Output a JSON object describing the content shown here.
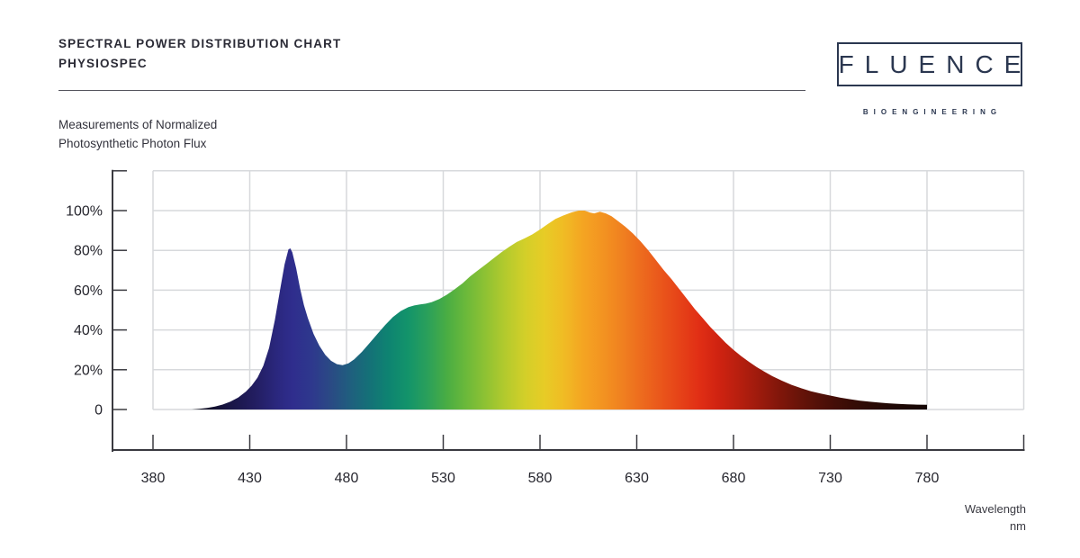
{
  "logo": {
    "name": "FLUENCE",
    "tagline": "BIOENGINEERING"
  },
  "caption": {
    "line1": "Measurements of Normalized",
    "line2": "Photosynthetic Photon Flux"
  },
  "axis_label": {
    "line1": "Wavelength",
    "line2": "nm"
  },
  "colors": {
    "background": "#ffffff",
    "grid": "#d7d9dc",
    "axis": "#3a3a40",
    "text": "#26262e",
    "logo_navy": "#2b3750"
  },
  "chart_data": {
    "type": "area",
    "title": "SPECTRAL POWER DISTRIBUTION CHART",
    "subtitle": "PHYSIOSPEC",
    "ylabel": "Measurements of Normalized Photosynthetic Photon Flux",
    "xlabel": "Wavelength nm",
    "grid": true,
    "legend": "none",
    "xlim_nm": [
      380,
      830
    ],
    "ylim_pct": [
      0,
      120
    ],
    "x_ticks": [
      380,
      430,
      480,
      530,
      580,
      630,
      680,
      730,
      780
    ],
    "x_grid_nm": [
      380,
      430,
      480,
      530,
      580,
      630,
      680,
      730,
      780,
      830
    ],
    "y_ticks_pct": [
      100,
      80,
      60,
      40,
      20,
      0
    ],
    "y_tick_labels": [
      "100%",
      "80%",
      "60%",
      "40%",
      "20%",
      "0"
    ],
    "y_grid_pct": [
      0,
      20,
      40,
      60,
      80,
      100,
      120
    ],
    "series_name": "Normalized Photosynthetic Photon Flux (%)",
    "points_nm_pct": [
      [
        400,
        0
      ],
      [
        404,
        0.3
      ],
      [
        408,
        0.8
      ],
      [
        412,
        1.5
      ],
      [
        416,
        2.5
      ],
      [
        420,
        4
      ],
      [
        424,
        6
      ],
      [
        428,
        9
      ],
      [
        431,
        12
      ],
      [
        434,
        16
      ],
      [
        437,
        22
      ],
      [
        440,
        31
      ],
      [
        443,
        45
      ],
      [
        446,
        62
      ],
      [
        448,
        73
      ],
      [
        450,
        80.5
      ],
      [
        451,
        81
      ],
      [
        452,
        79
      ],
      [
        454,
        71
      ],
      [
        456,
        61
      ],
      [
        458,
        52.5
      ],
      [
        460,
        46
      ],
      [
        463,
        38
      ],
      [
        466,
        32
      ],
      [
        469,
        27.5
      ],
      [
        472,
        24.5
      ],
      [
        475,
        22.8
      ],
      [
        478,
        22.3
      ],
      [
        481,
        23.2
      ],
      [
        484,
        25.2
      ],
      [
        488,
        29
      ],
      [
        492,
        33.5
      ],
      [
        496,
        38
      ],
      [
        500,
        42.5
      ],
      [
        504,
        46.5
      ],
      [
        508,
        49.5
      ],
      [
        512,
        51.5
      ],
      [
        515,
        52.3
      ],
      [
        518,
        52.8
      ],
      [
        521,
        53.2
      ],
      [
        524,
        54
      ],
      [
        528,
        55.5
      ],
      [
        532,
        57.8
      ],
      [
        536,
        60.5
      ],
      [
        540,
        63.5
      ],
      [
        544,
        67
      ],
      [
        548,
        70
      ],
      [
        552,
        73
      ],
      [
        556,
        76
      ],
      [
        560,
        79
      ],
      [
        564,
        81.7
      ],
      [
        568,
        84.2
      ],
      [
        572,
        86
      ],
      [
        576,
        88
      ],
      [
        580,
        90.5
      ],
      [
        584,
        93.2
      ],
      [
        588,
        95.8
      ],
      [
        592,
        97.5
      ],
      [
        596,
        99
      ],
      [
        600,
        100
      ],
      [
        603,
        100
      ],
      [
        606,
        99
      ],
      [
        608,
        98.6
      ],
      [
        611,
        99.4
      ],
      [
        614,
        98.6
      ],
      [
        617,
        97.2
      ],
      [
        620,
        95
      ],
      [
        624,
        92
      ],
      [
        628,
        88.5
      ],
      [
        632,
        84.5
      ],
      [
        636,
        80
      ],
      [
        640,
        75
      ],
      [
        644,
        70
      ],
      [
        648,
        65.5
      ],
      [
        652,
        60.5
      ],
      [
        656,
        55.5
      ],
      [
        660,
        50.5
      ],
      [
        664,
        46
      ],
      [
        668,
        41.5
      ],
      [
        672,
        37.5
      ],
      [
        676,
        33.5
      ],
      [
        680,
        30
      ],
      [
        684,
        26.8
      ],
      [
        688,
        24
      ],
      [
        692,
        21.3
      ],
      [
        696,
        19
      ],
      [
        700,
        16.8
      ],
      [
        705,
        14.5
      ],
      [
        710,
        12.4
      ],
      [
        715,
        10.7
      ],
      [
        720,
        9.2
      ],
      [
        725,
        8
      ],
      [
        730,
        7
      ],
      [
        735,
        6
      ],
      [
        740,
        5.2
      ],
      [
        745,
        4.5
      ],
      [
        750,
        4
      ],
      [
        755,
        3.5
      ],
      [
        760,
        3.1
      ],
      [
        765,
        2.8
      ],
      [
        770,
        2.6
      ],
      [
        775,
        2.45
      ],
      [
        780,
        2.4
      ]
    ],
    "gradient_stops": [
      {
        "nm": 400,
        "color": "#0c0b15"
      },
      {
        "nm": 418,
        "color": "#171441"
      },
      {
        "nm": 432,
        "color": "#221d5f"
      },
      {
        "nm": 445,
        "color": "#2b2880"
      },
      {
        "nm": 452,
        "color": "#2f2d8d"
      },
      {
        "nm": 462,
        "color": "#2e388d"
      },
      {
        "nm": 472,
        "color": "#2a4a84"
      },
      {
        "nm": 482,
        "color": "#1f5f7e"
      },
      {
        "nm": 492,
        "color": "#147177"
      },
      {
        "nm": 502,
        "color": "#0e8471"
      },
      {
        "nm": 512,
        "color": "#13946a"
      },
      {
        "nm": 522,
        "color": "#2ba05a"
      },
      {
        "nm": 532,
        "color": "#4aad43"
      },
      {
        "nm": 542,
        "color": "#6cb93a"
      },
      {
        "nm": 552,
        "color": "#8fc233"
      },
      {
        "nm": 562,
        "color": "#b3ca2d"
      },
      {
        "nm": 572,
        "color": "#d2cf29"
      },
      {
        "nm": 582,
        "color": "#e7cc26"
      },
      {
        "nm": 592,
        "color": "#f0bc24"
      },
      {
        "nm": 602,
        "color": "#f4a522"
      },
      {
        "nm": 612,
        "color": "#f39421"
      },
      {
        "nm": 622,
        "color": "#f08120"
      },
      {
        "nm": 632,
        "color": "#ed6c1e"
      },
      {
        "nm": 642,
        "color": "#ea571b"
      },
      {
        "nm": 652,
        "color": "#e64318"
      },
      {
        "nm": 662,
        "color": "#e12f15"
      },
      {
        "nm": 672,
        "color": "#d02311"
      },
      {
        "nm": 682,
        "color": "#b91f0f"
      },
      {
        "nm": 692,
        "color": "#a01b0d"
      },
      {
        "nm": 702,
        "color": "#85170b"
      },
      {
        "nm": 712,
        "color": "#6d1409"
      },
      {
        "nm": 722,
        "color": "#571108"
      },
      {
        "nm": 732,
        "color": "#450e07"
      },
      {
        "nm": 742,
        "color": "#360c06"
      },
      {
        "nm": 752,
        "color": "#2a0a05"
      },
      {
        "nm": 762,
        "color": "#200805"
      },
      {
        "nm": 772,
        "color": "#190704"
      },
      {
        "nm": 780,
        "color": "#140604"
      }
    ]
  }
}
